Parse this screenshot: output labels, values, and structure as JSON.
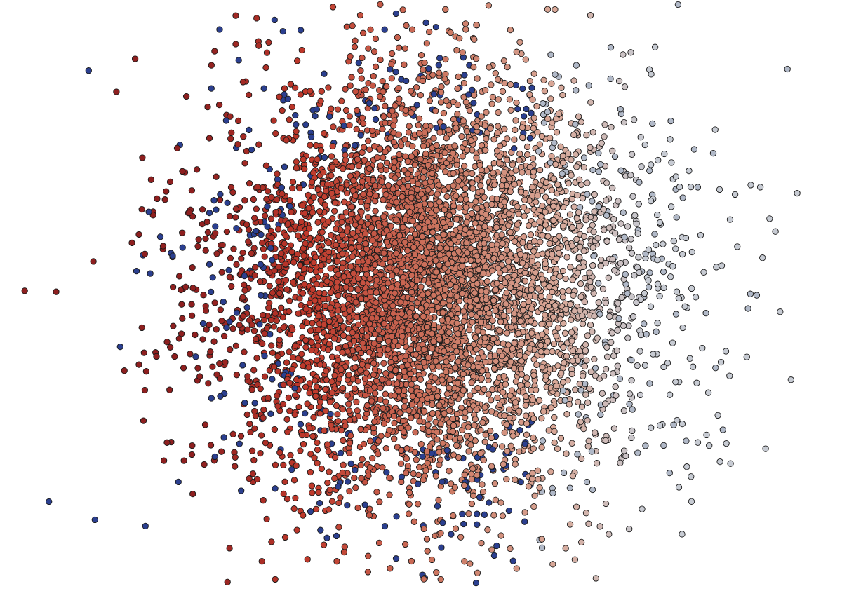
{
  "scene": {
    "title": "",
    "subject": "particle-cloud",
    "background_color": "#ffffff",
    "sphere_outline_color": "#1a1a1a",
    "color_scale": {
      "dark_red": "#8e1f1f",
      "red": "#c0392b",
      "salmon": "#cd7862",
      "light_pink": "#d8a898",
      "grey_white": "#c7cbd3",
      "blue": "#2b3f8f"
    },
    "particle_count_estimate": 6000,
    "visible_text": []
  }
}
